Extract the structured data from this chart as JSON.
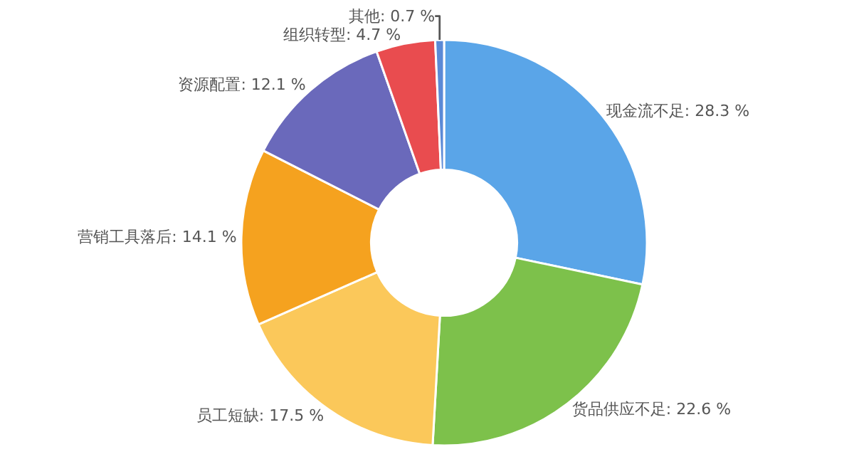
{
  "chart_data": {
    "type": "donut",
    "categories": [
      "现金流不足",
      "货品供应不足",
      "员工短缺",
      "营销工具落后",
      "资源配置",
      "组织转型",
      "其他"
    ],
    "values": [
      28.3,
      22.6,
      17.5,
      14.1,
      12.1,
      4.7,
      0.7
    ],
    "value_labels": [
      "28.3 %",
      "22.6 %",
      "17.5 %",
      "14.1 %",
      "12.1 %",
      "4.7 %",
      "0.7 %"
    ],
    "colors": [
      "#5aa5e8",
      "#7dc14b",
      "#fbc85a",
      "#f5a21f",
      "#6a69bb",
      "#e94c4f",
      "#5b8ad6"
    ],
    "legend": false
  }
}
